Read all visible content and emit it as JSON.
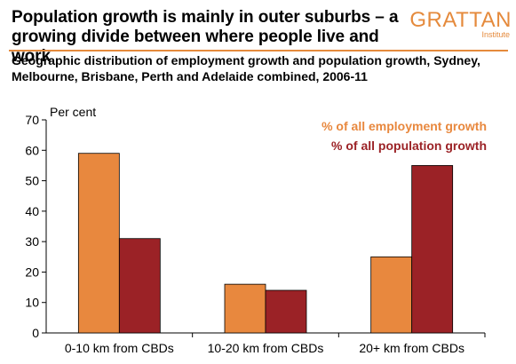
{
  "header": {
    "title": "Population growth is mainly in outer suburbs – a growing divide between where people live and work",
    "subtitle": "Geographic distribution of employment growth and population growth, Sydney, Melbourne, Brisbane, Perth and Adelaide combined, 2006-11",
    "logo_main": "GRATTAN",
    "logo_sub": "Institute"
  },
  "colors": {
    "employment": "#e8883e",
    "population": "#9b2226",
    "accent": "#e58a3c"
  },
  "chart_data": {
    "type": "bar",
    "categories": [
      "0-10 km from CBDs",
      "10-20 km from CBDs",
      "20+ km from CBDs"
    ],
    "series": [
      {
        "name": "% of all employment growth",
        "values": [
          59,
          16,
          25
        ]
      },
      {
        "name": "% of all population growth",
        "values": [
          31,
          14,
          55
        ]
      }
    ],
    "ylabel": "Per cent",
    "ylim": [
      0,
      70
    ],
    "yticks": [
      0,
      10,
      20,
      30,
      40,
      50,
      60,
      70
    ],
    "grid": false,
    "legend_position": "top-right"
  }
}
